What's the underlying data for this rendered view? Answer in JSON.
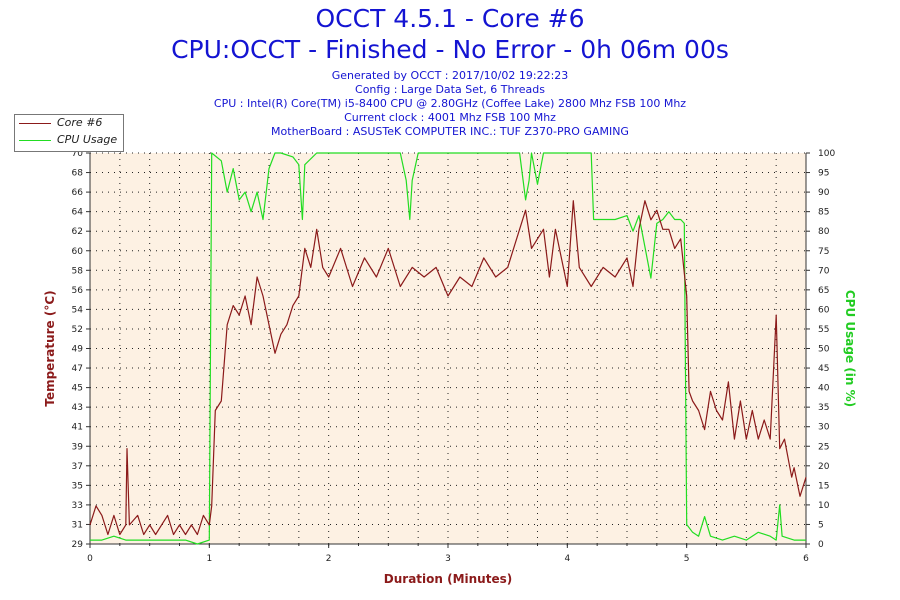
{
  "header": {
    "title_line1": "OCCT 4.5.1 - Core #6",
    "title_line2": "CPU:OCCT - Finished - No Error - 0h 06m 00s",
    "generated": "Generated by OCCT : 2017/10/02 19:22:23",
    "config": "Config : Large Data Set, 6 Threads",
    "cpu": "CPU : Intel(R) Core(TM) i5-8400 CPU @ 2.80GHz (Coffee Lake) 2800 Mhz FSB 100 Mhz",
    "clock": "Current clock : 4001 Mhz FSB 100 Mhz",
    "motherboard": "MotherBoard : ASUSTeK COMPUTER INC.: TUF Z370-PRO GAMING"
  },
  "colors": {
    "temperature": "#8b1a1a",
    "cpu_usage": "#22dd22",
    "plot_background": "#fdf1e3",
    "title": "#1414d2"
  },
  "chart_data": {
    "type": "line",
    "xlabel": "Duration (Minutes)",
    "ylabel_left": "Temperature (°C)",
    "ylabel_right": "CPU Usage (in %)",
    "xlim": [
      0,
      6
    ],
    "ylim_left": [
      29,
      70
    ],
    "ylim_right": [
      0,
      100
    ],
    "x_ticks": [
      0,
      1,
      2,
      3,
      4,
      5,
      6
    ],
    "y_left_ticks": [
      29,
      31,
      33,
      35,
      37,
      39,
      41,
      43,
      45,
      47,
      49,
      52,
      54,
      56,
      58,
      60,
      62,
      64,
      66,
      68,
      70
    ],
    "y_right_ticks": [
      0,
      5,
      10,
      15,
      20,
      25,
      30,
      35,
      40,
      45,
      50,
      55,
      60,
      65,
      70,
      75,
      80,
      85,
      90,
      95,
      100
    ],
    "grid": true,
    "legend": "top-left",
    "series": [
      {
        "name": "Core #6",
        "axis": "left",
        "points": [
          [
            0,
            31
          ],
          [
            0.05,
            33
          ],
          [
            0.1,
            32
          ],
          [
            0.15,
            30
          ],
          [
            0.2,
            32
          ],
          [
            0.25,
            30
          ],
          [
            0.3,
            31
          ],
          [
            0.31,
            39
          ],
          [
            0.33,
            31
          ],
          [
            0.4,
            32
          ],
          [
            0.45,
            30
          ],
          [
            0.5,
            31
          ],
          [
            0.55,
            30
          ],
          [
            0.6,
            31
          ],
          [
            0.65,
            32
          ],
          [
            0.7,
            30
          ],
          [
            0.75,
            31
          ],
          [
            0.8,
            30
          ],
          [
            0.85,
            31
          ],
          [
            0.9,
            30
          ],
          [
            0.95,
            32
          ],
          [
            1.0,
            31
          ],
          [
            1.02,
            33
          ],
          [
            1.05,
            43
          ],
          [
            1.1,
            44
          ],
          [
            1.15,
            52
          ],
          [
            1.2,
            54
          ],
          [
            1.25,
            53
          ],
          [
            1.3,
            55
          ],
          [
            1.35,
            52
          ],
          [
            1.4,
            57
          ],
          [
            1.45,
            55
          ],
          [
            1.5,
            52
          ],
          [
            1.55,
            49
          ],
          [
            1.6,
            51
          ],
          [
            1.65,
            52
          ],
          [
            1.7,
            54
          ],
          [
            1.75,
            55
          ],
          [
            1.8,
            60
          ],
          [
            1.85,
            58
          ],
          [
            1.9,
            62
          ],
          [
            1.95,
            58
          ],
          [
            2.0,
            57
          ],
          [
            2.1,
            60
          ],
          [
            2.2,
            56
          ],
          [
            2.3,
            59
          ],
          [
            2.4,
            57
          ],
          [
            2.5,
            60
          ],
          [
            2.6,
            56
          ],
          [
            2.7,
            58
          ],
          [
            2.8,
            57
          ],
          [
            2.9,
            58
          ],
          [
            3.0,
            55
          ],
          [
            3.1,
            57
          ],
          [
            3.2,
            56
          ],
          [
            3.3,
            59
          ],
          [
            3.4,
            57
          ],
          [
            3.5,
            58
          ],
          [
            3.6,
            62
          ],
          [
            3.65,
            64
          ],
          [
            3.7,
            60
          ],
          [
            3.8,
            62
          ],
          [
            3.85,
            57
          ],
          [
            3.9,
            62
          ],
          [
            4.0,
            56
          ],
          [
            4.05,
            65
          ],
          [
            4.1,
            58
          ],
          [
            4.2,
            56
          ],
          [
            4.3,
            58
          ],
          [
            4.4,
            57
          ],
          [
            4.5,
            59
          ],
          [
            4.55,
            56
          ],
          [
            4.6,
            62
          ],
          [
            4.65,
            65
          ],
          [
            4.7,
            63
          ],
          [
            4.75,
            64
          ],
          [
            4.8,
            62
          ],
          [
            4.85,
            62
          ],
          [
            4.9,
            60
          ],
          [
            4.95,
            61
          ],
          [
            5.0,
            55
          ],
          [
            5.02,
            45
          ],
          [
            5.05,
            44
          ],
          [
            5.1,
            43
          ],
          [
            5.15,
            41
          ],
          [
            5.2,
            45
          ],
          [
            5.25,
            43
          ],
          [
            5.3,
            42
          ],
          [
            5.35,
            46
          ],
          [
            5.4,
            40
          ],
          [
            5.45,
            44
          ],
          [
            5.5,
            40
          ],
          [
            5.55,
            43
          ],
          [
            5.6,
            40
          ],
          [
            5.65,
            42
          ],
          [
            5.7,
            40
          ],
          [
            5.75,
            53
          ],
          [
            5.78,
            39
          ],
          [
            5.82,
            40
          ],
          [
            5.88,
            36
          ],
          [
            5.9,
            37
          ],
          [
            5.95,
            34
          ],
          [
            6.0,
            36
          ]
        ]
      },
      {
        "name": "CPU Usage",
        "axis": "right",
        "points": [
          [
            0,
            1
          ],
          [
            0.1,
            1
          ],
          [
            0.2,
            2
          ],
          [
            0.3,
            1
          ],
          [
            0.4,
            1
          ],
          [
            0.5,
            1
          ],
          [
            0.6,
            1
          ],
          [
            0.7,
            1
          ],
          [
            0.8,
            1
          ],
          [
            0.9,
            0
          ],
          [
            1.0,
            1
          ],
          [
            1.02,
            100
          ],
          [
            1.1,
            98
          ],
          [
            1.15,
            90
          ],
          [
            1.2,
            96
          ],
          [
            1.25,
            88
          ],
          [
            1.3,
            90
          ],
          [
            1.35,
            85
          ],
          [
            1.4,
            90
          ],
          [
            1.45,
            83
          ],
          [
            1.5,
            96
          ],
          [
            1.55,
            100
          ],
          [
            1.6,
            100
          ],
          [
            1.7,
            99
          ],
          [
            1.75,
            97
          ],
          [
            1.78,
            83
          ],
          [
            1.8,
            97
          ],
          [
            1.9,
            100
          ],
          [
            2.0,
            100
          ],
          [
            2.1,
            100
          ],
          [
            2.2,
            100
          ],
          [
            2.3,
            100
          ],
          [
            2.4,
            100
          ],
          [
            2.5,
            100
          ],
          [
            2.6,
            100
          ],
          [
            2.65,
            93
          ],
          [
            2.68,
            83
          ],
          [
            2.7,
            93
          ],
          [
            2.75,
            100
          ],
          [
            2.8,
            100
          ],
          [
            2.9,
            100
          ],
          [
            3.0,
            100
          ],
          [
            3.1,
            100
          ],
          [
            3.2,
            100
          ],
          [
            3.3,
            100
          ],
          [
            3.4,
            100
          ],
          [
            3.5,
            100
          ],
          [
            3.6,
            100
          ],
          [
            3.65,
            88
          ],
          [
            3.68,
            93
          ],
          [
            3.7,
            100
          ],
          [
            3.75,
            92
          ],
          [
            3.8,
            100
          ],
          [
            3.9,
            100
          ],
          [
            4.0,
            100
          ],
          [
            4.1,
            100
          ],
          [
            4.2,
            100
          ],
          [
            4.22,
            83
          ],
          [
            4.3,
            83
          ],
          [
            4.4,
            83
          ],
          [
            4.5,
            84
          ],
          [
            4.55,
            80
          ],
          [
            4.6,
            84
          ],
          [
            4.65,
            76
          ],
          [
            4.7,
            68
          ],
          [
            4.75,
            82
          ],
          [
            4.8,
            83
          ],
          [
            4.85,
            85
          ],
          [
            4.9,
            83
          ],
          [
            4.95,
            83
          ],
          [
            4.98,
            82
          ],
          [
            5.0,
            5
          ],
          [
            5.05,
            3
          ],
          [
            5.1,
            2
          ],
          [
            5.15,
            7
          ],
          [
            5.2,
            2
          ],
          [
            5.3,
            1
          ],
          [
            5.4,
            2
          ],
          [
            5.5,
            1
          ],
          [
            5.6,
            3
          ],
          [
            5.7,
            2
          ],
          [
            5.75,
            1
          ],
          [
            5.78,
            10
          ],
          [
            5.8,
            2
          ],
          [
            5.9,
            1
          ],
          [
            6.0,
            1
          ]
        ]
      }
    ]
  }
}
